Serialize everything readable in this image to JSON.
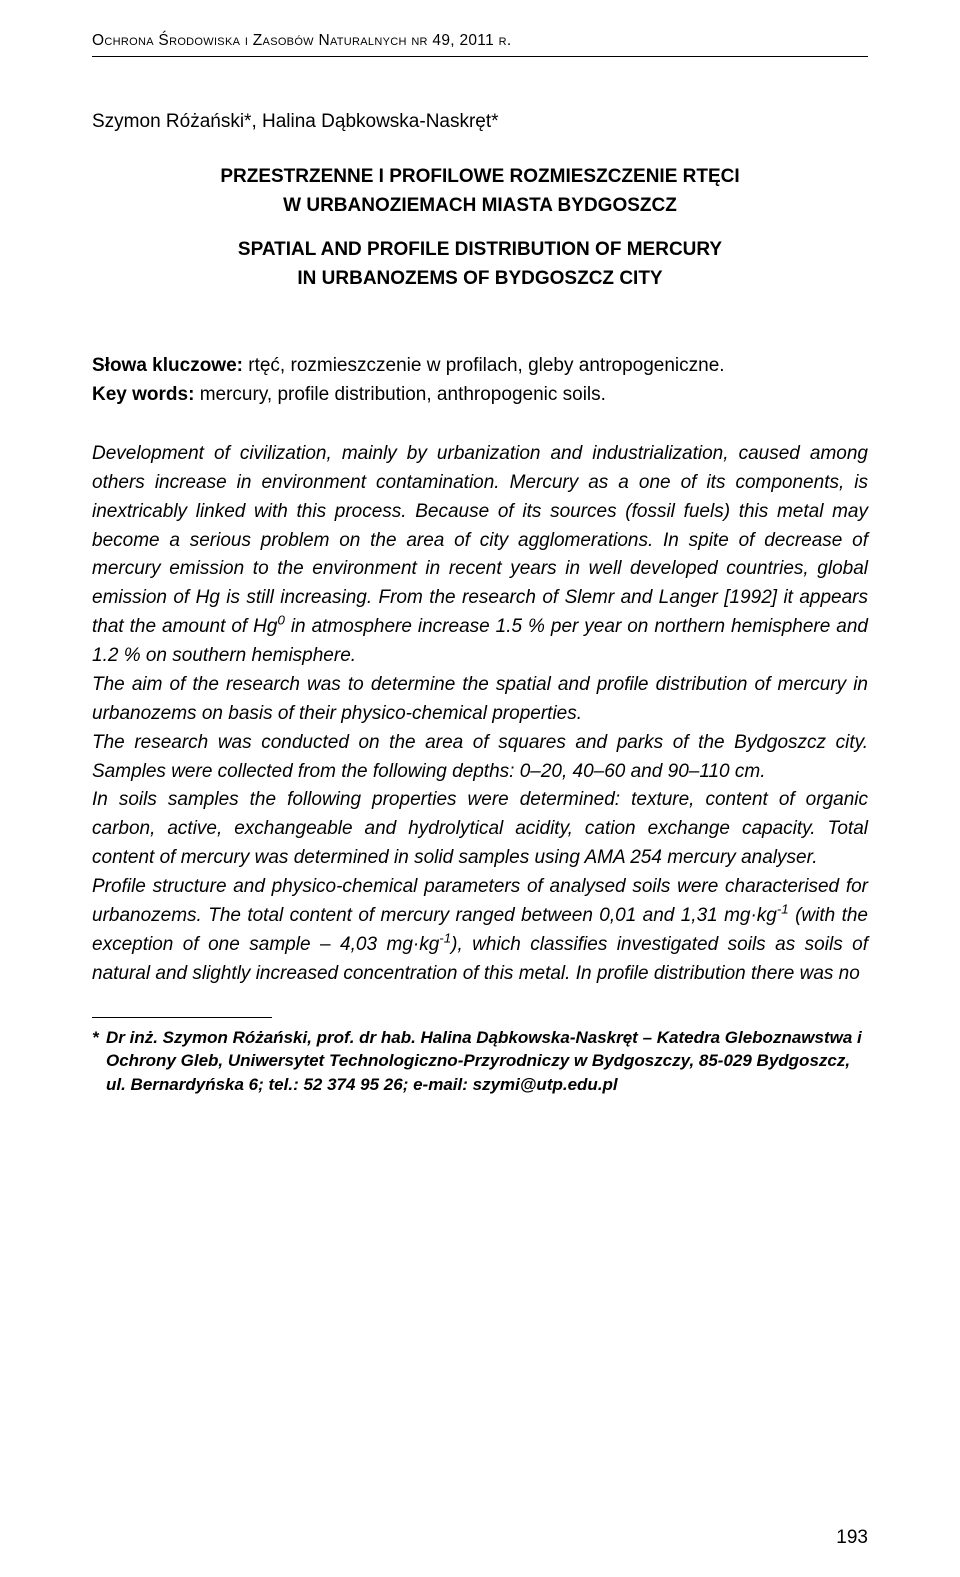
{
  "journal_header": "Ochrona Środowiska i Zasobów Naturalnych  nr 49, 2011 r.",
  "authors_line": "Szymon Różański*, Halina Dąbkowska-Naskręt*",
  "title_pl_line1": "PRZESTRZENNE I PROFILOWE ROZMIESZCZENIE RTĘCI",
  "title_pl_line2": "W URBANOZIEMACH MIASTA BYDGOSZCZ",
  "title_en_line1": "SPATIAL AND PROFILE DISTRIBUTION OF MERCURY",
  "title_en_line2": "IN URBANOZEMS OF BYDGOSZCZ CITY",
  "keywords": {
    "pl_label": "Słowa kluczowe:",
    "pl_text": " rtęć, rozmieszczenie w profilach, gleby antropogeniczne.",
    "en_label": "Key words:",
    "en_text": " mercury, profile distribution, anthropogenic soils."
  },
  "abstract": {
    "p1a": "Development of civilization, mainly by urbanization and industrialization, caused among others increase in environment contamination. Mercury as a one of its components, is inextricably linked with this process. Because of its sources (fossil fuels) this metal may become a serious problem on the area of city agglomerations. In spite of decrease of mercury emission to the environment in recent years in well developed countries, global emission of Hg is still increasing. From the research of Slemr and Langer [1992] it appears that the amount of Hg",
    "p1b": " in atmosphere increase 1.5 % per year on northern hemisphere and 1.2 % on southern hemisphere.",
    "p2": "The aim of the research was to determine the spatial and profile distribution of mercury in urbanozems on basis of their physico-chemical properties.",
    "p3": "The research was conducted on the area of squares and parks of the Bydgoszcz city. Samples were collected from the following depths: 0–20, 40–60 and 90–110 cm.",
    "p4": "In soils samples the following properties were determined: texture, content of organic carbon, active, exchangeable and hydrolytical acidity, cation exchange capacity. Total content of mercury was determined in solid samples using AMA 254 mercury analyser.",
    "p5a": "Profile structure and physico-chemical parameters of analysed soils were characterised for urbanozems. The total content of mercury ranged between 0,01 and 1,31 mg·kg",
    "p5b": " (with the exception of one sample – 4,03 mg·kg",
    "p5c": "), which classifies investigated soils as soils of natural and slightly increased concentration of this metal. In profile distribution there was no"
  },
  "footnote": {
    "star": "*",
    "text": "Dr inż. Szymon Różański, prof. dr hab. Halina Dąbkowska-Naskręt – Katedra Gleboznawstwa i Ochrony Gleb, Uniwersytet Technologiczno-Przyrodniczy w Bydgoszczy, 85-029 Bydgoszcz, ul. Bernardyńska 6; tel.: 52 374 95 26; e-mail: szymi@utp.edu.pl"
  },
  "page_number": "193"
}
